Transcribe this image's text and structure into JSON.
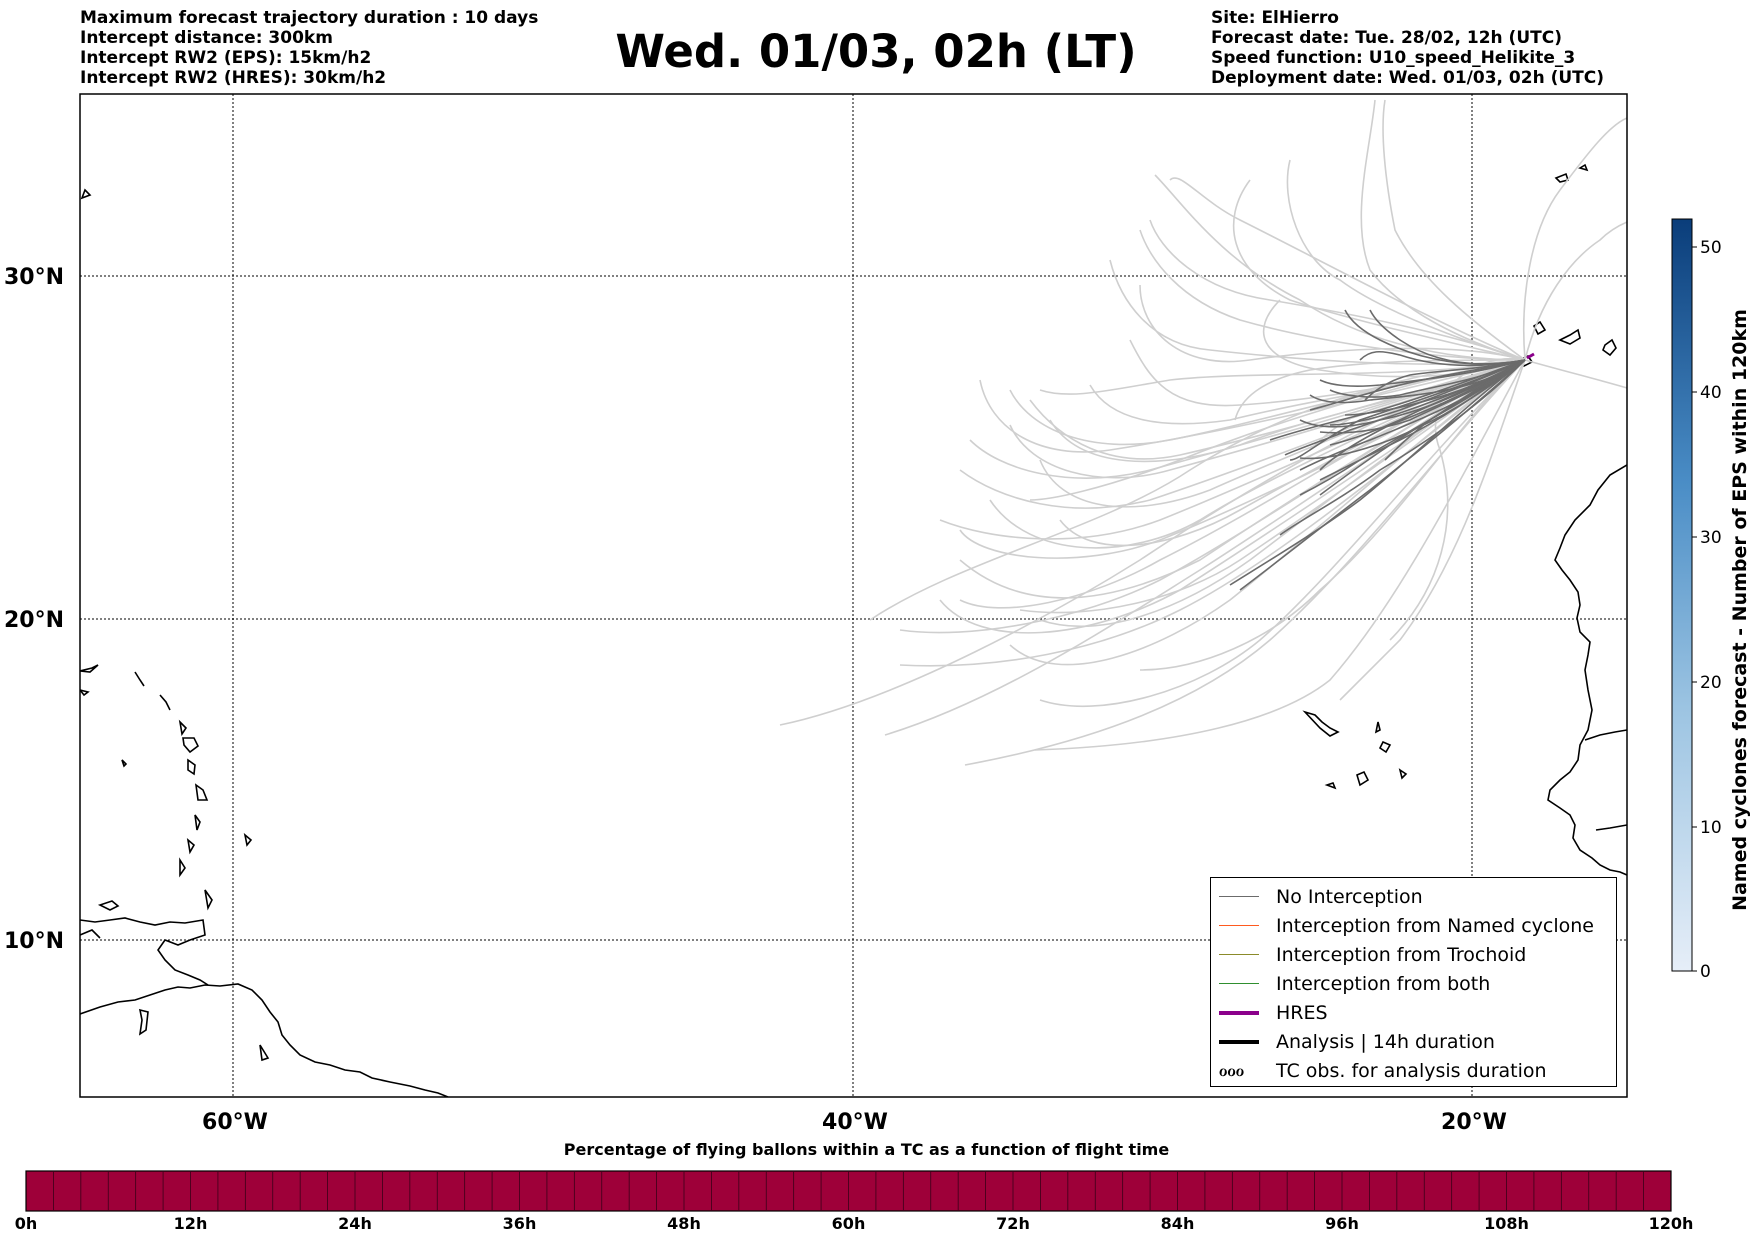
{
  "header": {
    "left_lines": [
      "Maximum forecast trajectory duration : 10 days",
      "Intercept distance: 300km",
      "Intercept RW2 (EPS):  15km/h2",
      "Intercept RW2 (HRES): 30km/h2"
    ],
    "title": "Wed. 01/03, 02h (LT)",
    "right_lines": [
      "Site: ElHierro",
      "Forecast date: Tue. 28/02, 12h (UTC)",
      "Speed function: U10_speed_Helikite_3",
      "Deployment date: Wed. 01/03, 02h (UTC)"
    ]
  },
  "map": {
    "lat_labels": [
      "30°N",
      "20°N",
      "10°N"
    ],
    "lon_labels": [
      "60°W",
      "40°W",
      "20°W"
    ],
    "colors": {
      "no_interception": "#6b6b6b",
      "old_trajectories": "#cfcfcf",
      "named_cyclone": "#ff5a1f",
      "trochoid": "#8b8b2a",
      "both": "#2f8f2f",
      "hres": "#8b008b",
      "analysis": "#000000"
    }
  },
  "legend": {
    "items": [
      {
        "label": "No Interception",
        "icon": "line-thin-gray"
      },
      {
        "label": "Interception from Named cyclone",
        "icon": "line-thin-orange"
      },
      {
        "label": "Interception from Trochoid",
        "icon": "line-thin-olive"
      },
      {
        "label": "Interception from both",
        "icon": "line-thin-green"
      },
      {
        "label": "HRES",
        "icon": "line-thick-purple"
      },
      {
        "label": "Analysis | 14h duration",
        "icon": "line-thick-black"
      },
      {
        "label": "TC obs. for analysis duration",
        "icon": "cyclone-symbols",
        "symbol": "ℴℴℴ"
      }
    ]
  },
  "colorbar": {
    "label": "Named cyclones forecast - Number of EPS within 120km",
    "ticks": [
      "50",
      "40",
      "30",
      "20",
      "10",
      "0"
    ]
  },
  "bottom_bar": {
    "title": "Percentage of flying ballons within a TC as a function of flight time",
    "fill_color": "#9e0039",
    "hours": [
      "0h",
      "12h",
      "24h",
      "36h",
      "48h",
      "60h",
      "72h",
      "84h",
      "96h",
      "108h",
      "120h"
    ]
  }
}
